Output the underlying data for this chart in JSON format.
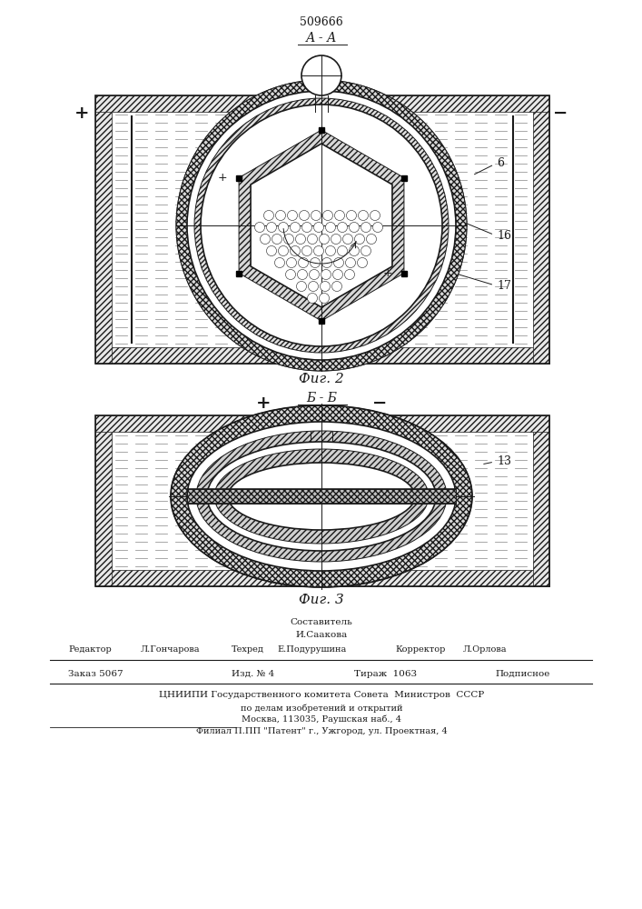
{
  "patent_number": "509666",
  "fig2_label": "А - А",
  "fig3_label": "Б - Б",
  "fig2_caption": "Фиг. 2",
  "fig3_caption": "Фиг. 3",
  "label_6": "6",
  "label_16": "16",
  "label_17": "17",
  "label_13": "13",
  "bg_color": "#ffffff",
  "line_color": "#1a1a1a",
  "footer_составитель": "Составитель",
  "footer_name": "И.Саакова",
  "footer_editor": "Редактор",
  "footer_editor_name": "Л.Гончарова",
  "footer_techred": "Техред",
  "footer_techred_name": "Е.Подурушина",
  "footer_corrector": "Корректор",
  "footer_corrector_name": "Л.Орлова",
  "footer_order": "Заказ 5067",
  "footer_izdanie": "Изд. №",
  "footer_izdanie_num": "4",
  "footer_tirazh": "Тираж",
  "footer_tirazh_num": "1063",
  "footer_podpisnoe": "Подписное",
  "footer_org1": "ЦНИИПИ Государственного комитета Совета  Министров  СССР",
  "footer_org2": "по делам изобретений и открытий",
  "footer_org3": "Москва, 113035, Раушская наб., 4",
  "footer_filial": "Филиал П.ПП \"Патент\" г., Ужгород, ул. Проектная, 4"
}
